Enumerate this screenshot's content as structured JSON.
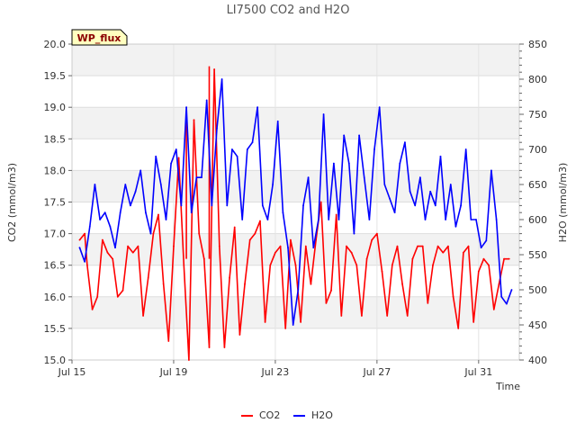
{
  "chart_data": {
    "type": "line",
    "title": "LI7500 CO2 and H2O",
    "badge": "WP_flux",
    "xlabel": "Time",
    "ylabel_left": "CO2 (mmol/m3)",
    "ylabel_right": "H2O (mmol/m3)",
    "xlim": [
      0,
      17.6
    ],
    "x_ticks": [
      {
        "value": 0,
        "label": "Jul 15"
      },
      {
        "value": 4,
        "label": "Jul 19"
      },
      {
        "value": 8,
        "label": "Jul 23"
      },
      {
        "value": 12,
        "label": "Jul 27"
      },
      {
        "value": 16,
        "label": "Jul 31"
      }
    ],
    "ylim_left": [
      15.0,
      20.0
    ],
    "ylim_right": [
      400,
      850
    ],
    "y_ticks_left": [
      "15.0",
      "15.5",
      "16.0",
      "16.5",
      "17.0",
      "17.5",
      "18.0",
      "18.5",
      "19.0",
      "19.5",
      "20.0"
    ],
    "y_ticks_right": [
      "400",
      "450",
      "500",
      "550",
      "600",
      "650",
      "700",
      "750",
      "800",
      "850"
    ],
    "grid": true,
    "legend_position": "bottom-center",
    "series": [
      {
        "name": "CO2",
        "axis": "left",
        "color": "#ff0000",
        "x": [
          0.3,
          0.5,
          0.6,
          0.8,
          1.0,
          1.2,
          1.4,
          1.6,
          1.8,
          2.0,
          2.2,
          2.4,
          2.6,
          2.8,
          3.0,
          3.2,
          3.4,
          3.6,
          3.8,
          4.0,
          4.2,
          4.4,
          4.6,
          4.8,
          5.0,
          5.2,
          5.4,
          5.6,
          5.8,
          6.0,
          6.2,
          6.4,
          6.6,
          6.8,
          7.0,
          7.2,
          7.4,
          7.6,
          7.8,
          8.0,
          8.2,
          8.4,
          8.6,
          8.8,
          9.0,
          9.2,
          9.4,
          9.6,
          9.8,
          10.0,
          10.2,
          10.4,
          10.6,
          10.8,
          11.0,
          11.2,
          11.4,
          11.6,
          11.8,
          12.0,
          12.2,
          12.4,
          12.6,
          12.8,
          13.0,
          13.2,
          13.4,
          13.6,
          13.8,
          14.0,
          14.2,
          14.4,
          14.6,
          14.8,
          15.0,
          15.2,
          15.4,
          15.6,
          15.8,
          16.0,
          16.2,
          16.4,
          16.6,
          16.8,
          17.0,
          17.2
        ],
        "values": [
          16.9,
          17.0,
          16.5,
          15.8,
          16.0,
          16.9,
          16.7,
          16.6,
          16.0,
          16.1,
          16.8,
          16.7,
          16.8,
          15.7,
          16.3,
          17.0,
          17.3,
          16.2,
          15.3,
          16.8,
          18.2,
          16.5,
          15.0,
          18.8,
          17.0,
          16.6,
          15.2,
          19.6,
          16.8,
          15.2,
          16.3,
          17.1,
          15.4,
          16.2,
          16.9,
          17.0,
          17.2,
          15.6,
          16.5,
          16.7,
          16.8,
          15.5,
          16.9,
          16.5,
          15.6,
          16.8,
          16.2,
          16.9,
          17.5,
          15.9,
          16.1,
          17.3,
          15.7,
          16.8,
          16.7,
          16.5,
          15.7,
          16.6,
          16.9,
          17.0,
          16.4,
          15.7,
          16.5,
          16.8,
          16.2,
          15.7,
          16.6,
          16.8,
          16.8,
          15.9,
          16.5,
          16.8,
          16.7,
          16.8,
          16.0,
          15.5,
          16.7,
          16.8,
          15.6,
          16.4,
          16.6,
          16.5,
          15.8,
          16.2,
          16.6,
          16.6
        ],
        "note_spikes": [
          [
            4.5,
            18.8
          ],
          [
            5.4,
            19.65
          ]
        ]
      },
      {
        "name": "H2O",
        "axis": "right",
        "color": "#0000ff",
        "x": [
          0.3,
          0.5,
          0.7,
          0.9,
          1.1,
          1.3,
          1.5,
          1.7,
          1.9,
          2.1,
          2.3,
          2.5,
          2.7,
          2.9,
          3.1,
          3.3,
          3.5,
          3.7,
          3.9,
          4.1,
          4.3,
          4.5,
          4.7,
          4.9,
          5.1,
          5.3,
          5.5,
          5.7,
          5.9,
          6.1,
          6.3,
          6.5,
          6.7,
          6.9,
          7.1,
          7.3,
          7.5,
          7.7,
          7.9,
          8.1,
          8.3,
          8.5,
          8.7,
          8.9,
          9.1,
          9.3,
          9.5,
          9.7,
          9.9,
          10.1,
          10.3,
          10.5,
          10.7,
          10.9,
          11.1,
          11.3,
          11.5,
          11.7,
          11.9,
          12.1,
          12.3,
          12.5,
          12.7,
          12.9,
          13.1,
          13.3,
          13.5,
          13.7,
          13.9,
          14.1,
          14.3,
          14.5,
          14.7,
          14.9,
          15.1,
          15.3,
          15.5,
          15.7,
          15.9,
          16.1,
          16.3,
          16.5,
          16.7,
          16.9,
          17.1,
          17.3
        ],
        "values": [
          560,
          540,
          590,
          650,
          600,
          610,
          590,
          560,
          610,
          650,
          620,
          640,
          670,
          610,
          580,
          690,
          650,
          600,
          680,
          700,
          620,
          760,
          610,
          660,
          660,
          770,
          620,
          730,
          800,
          620,
          700,
          690,
          600,
          700,
          710,
          760,
          620,
          600,
          650,
          740,
          610,
          560,
          450,
          500,
          620,
          660,
          560,
          600,
          750,
          600,
          680,
          600,
          720,
          680,
          580,
          720,
          660,
          600,
          700,
          760,
          650,
          630,
          610,
          680,
          710,
          640,
          620,
          660,
          600,
          640,
          620,
          690,
          600,
          650,
          590,
          620,
          700,
          600,
          600,
          560,
          570,
          670,
          600,
          490,
          480,
          500
        ]
      }
    ]
  }
}
